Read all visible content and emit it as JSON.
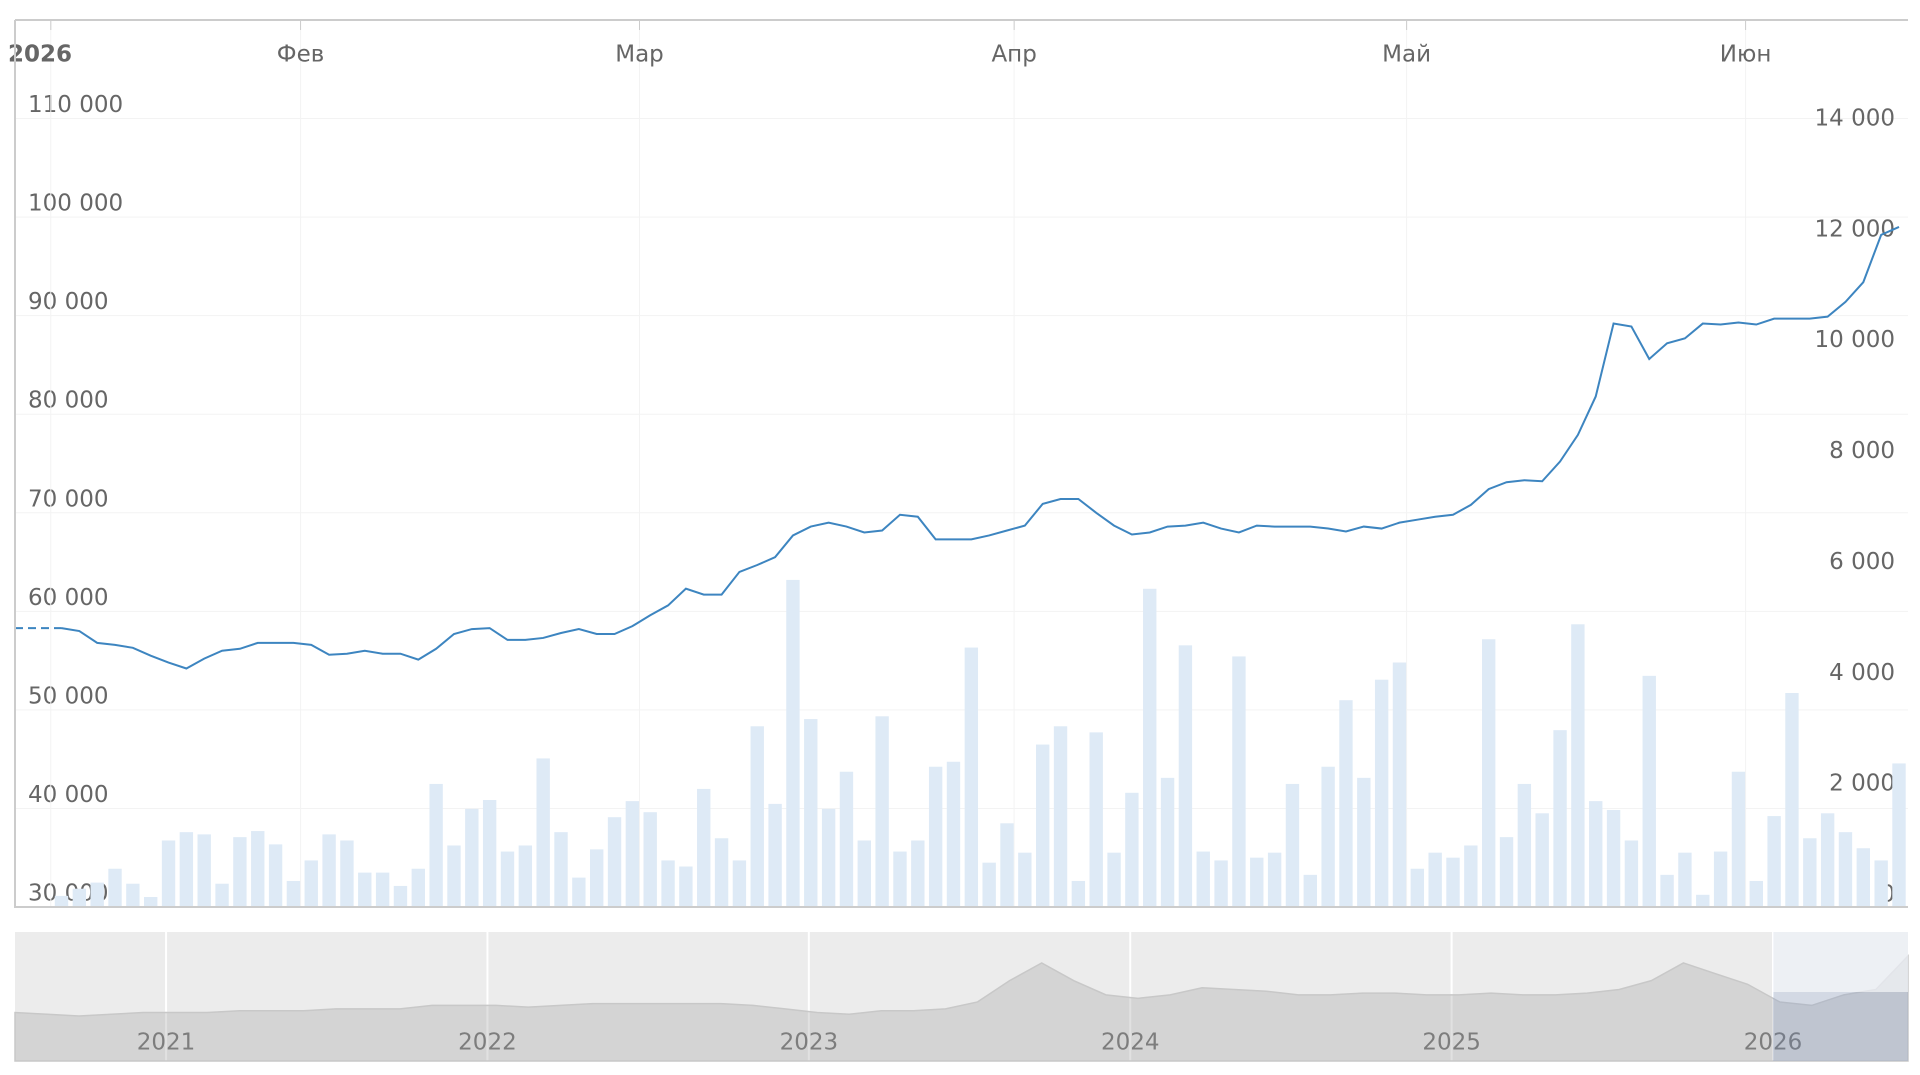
{
  "chart_data": {
    "type": "line",
    "categories": [
      "2026",
      null,
      null,
      null,
      null,
      null,
      null,
      null,
      null,
      null,
      null,
      null,
      null,
      null,
      "Фев",
      null,
      null,
      null,
      null,
      null,
      null,
      null,
      null,
      null,
      null,
      null,
      null,
      null,
      null,
      null,
      null,
      null,
      null,
      "Мар",
      null,
      null,
      null,
      null,
      null,
      null,
      null,
      null,
      null,
      null,
      null,
      null,
      null,
      null,
      null,
      null,
      null,
      null,
      null,
      null,
      "Апр",
      null,
      null,
      null,
      null,
      null,
      null,
      null,
      null,
      null,
      null,
      null,
      null,
      null,
      null,
      null,
      null,
      null,
      null,
      null,
      null,
      null,
      "Май",
      null,
      null,
      null,
      null,
      null,
      null,
      null,
      null,
      null,
      null,
      null,
      null,
      null,
      null,
      null,
      null,
      null,
      null,
      "Июн",
      null,
      null,
      null,
      null,
      null,
      null,
      null,
      null
    ],
    "series": [
      {
        "type": "line",
        "color": "#3d85c0",
        "values": [
          58300,
          58000,
          56800,
          56600,
          56300,
          55500,
          54800,
          54200,
          55200,
          56000,
          56200,
          56800,
          56800,
          56800,
          56600,
          55600,
          55700,
          56000,
          55700,
          55700,
          55100,
          56200,
          57700,
          58200,
          58300,
          57100,
          57100,
          57300,
          57800,
          58200,
          57700,
          57700,
          58500,
          59600,
          60600,
          62300,
          61700,
          61700,
          64000,
          64700,
          65500,
          67700,
          68600,
          69000,
          68600,
          68000,
          68200,
          69800,
          69600,
          67300,
          67300,
          67300,
          67700,
          68200,
          68700,
          70900,
          71400,
          71400,
          70000,
          68700,
          67800,
          68000,
          68600,
          68700,
          69000,
          68400,
          68000,
          68700,
          68600,
          68600,
          68600,
          68400,
          68100,
          68600,
          68400,
          69000,
          69300,
          69600,
          69800,
          70800,
          72400,
          73100,
          73300,
          73200,
          75200,
          77900,
          81800,
          89200,
          88900,
          85600,
          87200,
          87700,
          89200,
          89100,
          89300,
          89100,
          89700,
          89700,
          89700,
          89900,
          91400,
          93400,
          98200,
          99000
        ]
      },
      {
        "type": "column",
        "axis": "y2",
        "color": "#deeaf6",
        "values": [
          200,
          330,
          440,
          690,
          420,
          180,
          1200,
          1350,
          1310,
          420,
          1260,
          1370,
          1130,
          470,
          840,
          1310,
          1200,
          620,
          620,
          380,
          690,
          2220,
          1110,
          1770,
          1930,
          1000,
          1110,
          2680,
          1350,
          530,
          1040,
          1620,
          1910,
          1710,
          840,
          730,
          2130,
          1240,
          840,
          3260,
          1860,
          5900,
          3390,
          1770,
          2440,
          1200,
          3440,
          1000,
          1200,
          2530,
          2620,
          4680,
          800,
          1510,
          980,
          2930,
          3260,
          470,
          3150,
          980,
          2060,
          5740,
          2330,
          4720,
          1000,
          840,
          4520,
          890,
          980,
          2220,
          580,
          2530,
          3730,
          2330,
          4100,
          4410,
          690,
          980,
          890,
          1110,
          4830,
          1260,
          2220,
          1690,
          3190,
          5100,
          1910,
          1750,
          1200,
          4170,
          580,
          980,
          220,
          1000,
          2440,
          470,
          1640,
          3860,
          1240,
          1690,
          1350,
          1060,
          840,
          2590
        ]
      }
    ],
    "ylim": [
      30000,
      120000
    ],
    "yticks": [
      {
        "value": 30000,
        "label": "30 000"
      },
      {
        "value": 40000,
        "label": "40 000"
      },
      {
        "value": 50000,
        "label": "50 000"
      },
      {
        "value": 60000,
        "label": "60 000"
      },
      {
        "value": 70000,
        "label": "70 000"
      },
      {
        "value": 80000,
        "label": "80 000"
      },
      {
        "value": 90000,
        "label": "90 000"
      },
      {
        "value": 100000,
        "label": "100 000"
      },
      {
        "value": 110000,
        "label": "110 000"
      }
    ],
    "y2lim": [
      0,
      16000
    ],
    "y2ticks": [
      0,
      {
        "value": 2000,
        "label": "2 000"
      },
      {
        "value": 4000,
        "label": "4 000"
      },
      {
        "value": 6000,
        "label": "6 000"
      },
      {
        "value": 8000,
        "label": "8 000"
      },
      {
        "value": 10000,
        "label": "10 000"
      },
      {
        "value": 12000,
        "label": "12 000"
      },
      {
        "value": 14000,
        "label": "14 000"
      }
    ],
    "grid": true,
    "navigator": {
      "xlim": [
        2020.53,
        2026.42
      ],
      "xticks": [
        2021,
        2022,
        2023,
        2024,
        2025,
        2026
      ],
      "values": [
        49300,
        47900,
        46500,
        47900,
        49300,
        49300,
        49300,
        50700,
        50700,
        50700,
        52200,
        52200,
        52200,
        55000,
        55000,
        55000,
        53600,
        55000,
        56400,
        56400,
        56400,
        56400,
        56400,
        55000,
        52200,
        49300,
        47900,
        50700,
        50700,
        52200,
        57800,
        74900,
        89100,
        74900,
        63500,
        60700,
        63500,
        69200,
        67800,
        66400,
        63500,
        63500,
        64900,
        64900,
        63500,
        63500,
        64900,
        63500,
        63500,
        64900,
        67800,
        74900,
        89100,
        80500,
        72000,
        57800,
        55000,
        63500,
        67800,
        94700
      ]
    }
  }
}
